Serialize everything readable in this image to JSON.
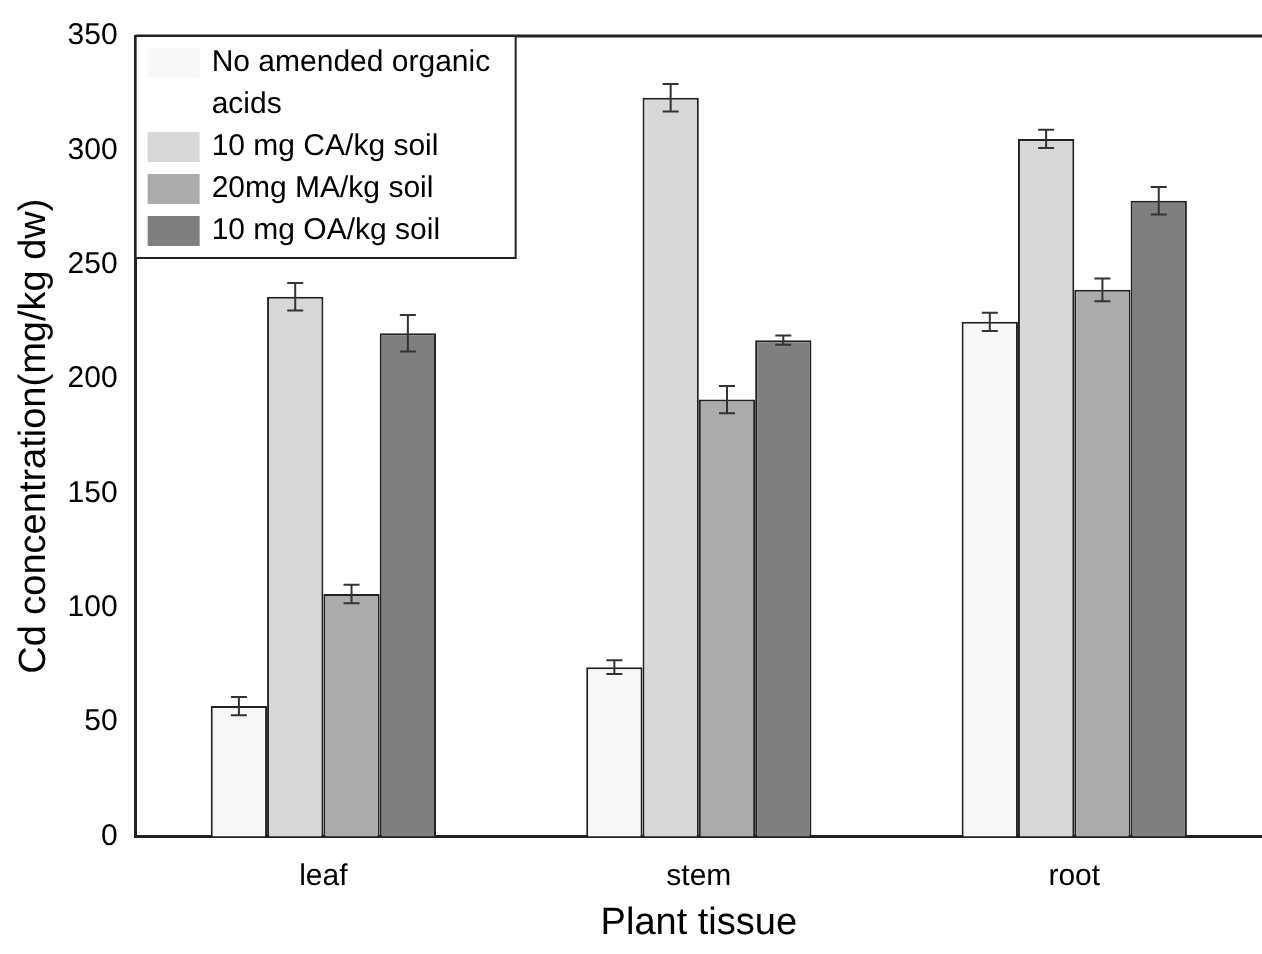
{
  "chart_data": {
    "type": "bar",
    "xlabel": "Plant tissue",
    "ylabel": "Cd concentration(mg/kg dw)",
    "categories": [
      "leaf",
      "stem",
      "root"
    ],
    "series": [
      {
        "name": "No amended organic acids",
        "color": "#f8f8f8",
        "values": [
          57,
          74,
          225
        ],
        "errors": [
          4,
          3,
          4
        ]
      },
      {
        "name": "10 mg CA/kg soil",
        "color": "#d8d8d8",
        "values": [
          236,
          323,
          305
        ],
        "errors": [
          6,
          6,
          4
        ]
      },
      {
        "name": "20mg MA/kg soil",
        "color": "#ababab",
        "values": [
          106,
          191,
          239
        ],
        "errors": [
          4,
          6,
          5
        ]
      },
      {
        "name": "10 mg OA/kg soil",
        "color": "#7f7f7f",
        "values": [
          220,
          217,
          278
        ],
        "errors": [
          8,
          2,
          6
        ]
      }
    ],
    "ylim": [
      0,
      350
    ],
    "yticks": [
      0,
      50,
      100,
      150,
      200,
      250,
      300,
      350
    ],
    "grid": false,
    "legend": "top left"
  }
}
